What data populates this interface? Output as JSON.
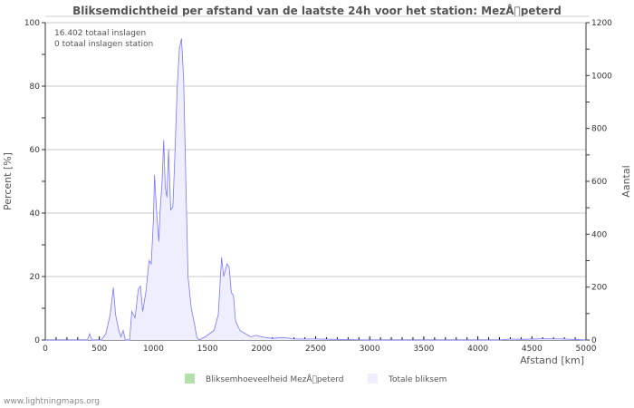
{
  "chart_data": {
    "type": "area",
    "title": "Bliksemdichtheid per afstand van de laatste 24h voor het station: MezÅ\u0000peterd",
    "xlabel": "Afstand   [km]",
    "ylabel": "Percent   [%]",
    "ylabel_right": "Aantal",
    "xlim": [
      0,
      5000
    ],
    "ylim": [
      0,
      100
    ],
    "ylim_right": [
      0,
      1200
    ],
    "x_ticks": [
      "0",
      "500",
      "1000",
      "1500",
      "2000",
      "2500",
      "3000",
      "3500",
      "4000",
      "4500",
      "5000"
    ],
    "y_ticks": [
      "0",
      "20",
      "40",
      "60",
      "80",
      "100"
    ],
    "y_ticks_right": [
      "0",
      "200",
      "400",
      "600",
      "800",
      "1000",
      "1200"
    ],
    "annotations": [
      "16.402 totaal inslagen",
      "0 totaal inslagen station"
    ],
    "legend": [
      "Bliksemhoeveelheid MezÅ\u0000peterd",
      "Totale bliksem"
    ],
    "legend_colors": [
      "#b3e0a8",
      "#eeeeff"
    ],
    "grid": true,
    "series": [
      {
        "name": "Totale bliksem",
        "color": "#7777ff",
        "points": [
          [
            0,
            0
          ],
          [
            390,
            0
          ],
          [
            410,
            2
          ],
          [
            430,
            0
          ],
          [
            520,
            0
          ],
          [
            560,
            2
          ],
          [
            600,
            8
          ],
          [
            630,
            16.5
          ],
          [
            650,
            8
          ],
          [
            680,
            3
          ],
          [
            700,
            1
          ],
          [
            720,
            3
          ],
          [
            740,
            0
          ],
          [
            780,
            0
          ],
          [
            800,
            9
          ],
          [
            830,
            7
          ],
          [
            860,
            16
          ],
          [
            880,
            17
          ],
          [
            900,
            9
          ],
          [
            930,
            15
          ],
          [
            960,
            25
          ],
          [
            980,
            24
          ],
          [
            1000,
            38
          ],
          [
            1010,
            52
          ],
          [
            1030,
            40
          ],
          [
            1050,
            31
          ],
          [
            1060,
            40
          ],
          [
            1080,
            50
          ],
          [
            1095,
            63
          ],
          [
            1110,
            48
          ],
          [
            1125,
            45
          ],
          [
            1140,
            60
          ],
          [
            1160,
            41
          ],
          [
            1180,
            42
          ],
          [
            1200,
            60
          ],
          [
            1220,
            80
          ],
          [
            1240,
            92
          ],
          [
            1260,
            95
          ],
          [
            1280,
            82
          ],
          [
            1300,
            50
          ],
          [
            1320,
            20
          ],
          [
            1350,
            10
          ],
          [
            1380,
            5
          ],
          [
            1400,
            1
          ],
          [
            1420,
            0
          ],
          [
            1480,
            1
          ],
          [
            1520,
            2
          ],
          [
            1560,
            3
          ],
          [
            1600,
            8
          ],
          [
            1630,
            26
          ],
          [
            1650,
            20
          ],
          [
            1680,
            24
          ],
          [
            1700,
            23
          ],
          [
            1720,
            15
          ],
          [
            1740,
            14
          ],
          [
            1760,
            6
          ],
          [
            1800,
            3
          ],
          [
            1850,
            2
          ],
          [
            1900,
            1
          ],
          [
            1950,
            1.5
          ],
          [
            2000,
            1
          ],
          [
            2100,
            0.5
          ],
          [
            2200,
            0.8
          ],
          [
            2300,
            0.3
          ],
          [
            2500,
            0.3
          ],
          [
            2700,
            0.2
          ],
          [
            3000,
            0
          ],
          [
            4200,
            0
          ],
          [
            4300,
            0.3
          ],
          [
            4400,
            0.2
          ],
          [
            4600,
            0.4
          ],
          [
            4800,
            0.3
          ],
          [
            5000,
            0
          ]
        ]
      },
      {
        "name": "Bliksemhoeveelheid MezÅ\u0000peterd",
        "color": "#66bb55",
        "points": []
      }
    ]
  },
  "footer": "www.lightningmaps.org"
}
